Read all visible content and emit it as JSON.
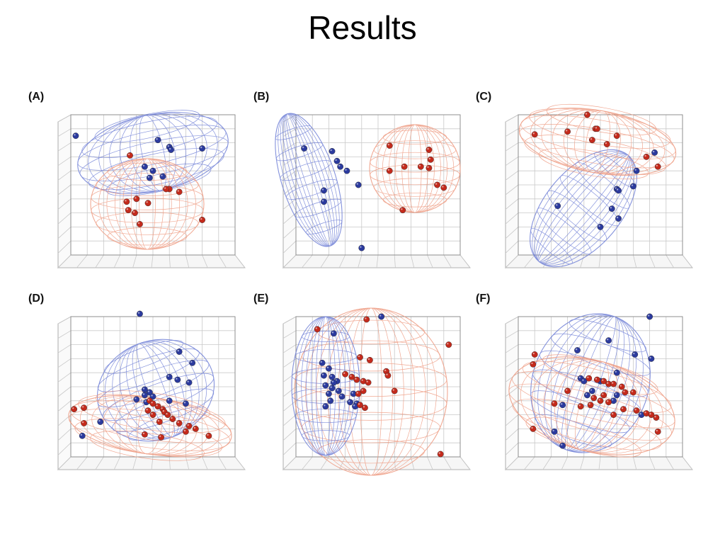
{
  "slide": {
    "title": "Results"
  },
  "colors": {
    "group1": "#2b3a9e",
    "group2": "#c42a1c",
    "mesh1": "#6f7fd6",
    "mesh2": "#ee9a80",
    "grid": "#c9c9c9"
  },
  "chart_data": [
    {
      "type": "scatter",
      "panel": "(A)",
      "xlim": [
        0,
        100
      ],
      "ylim": [
        0,
        100
      ],
      "series": [
        {
          "color": "blue",
          "x": [
            3,
            53,
            60,
            61,
            80,
            45,
            50,
            56,
            48
          ],
          "y": [
            85,
            82,
            77,
            75,
            76,
            63,
            60,
            56,
            55
          ]
        },
        {
          "color": "red",
          "x": [
            36,
            60,
            34,
            40,
            47,
            66,
            80,
            35,
            39,
            42,
            58
          ],
          "y": [
            71,
            47,
            38,
            40,
            37,
            45,
            25,
            32,
            30,
            22,
            47
          ]
        }
      ]
    },
    {
      "type": "scatter",
      "panel": "(B)",
      "xlim": [
        0,
        100
      ],
      "ylim": [
        0,
        100
      ],
      "series": [
        {
          "color": "blue",
          "x": [
            5,
            22,
            25,
            27,
            31,
            38,
            17,
            17,
            40
          ],
          "y": [
            76,
            74,
            67,
            63,
            60,
            50,
            46,
            38,
            5
          ]
        },
        {
          "color": "red",
          "x": [
            57,
            81,
            82,
            66,
            76,
            81,
            86,
            90,
            57,
            65
          ],
          "y": [
            78,
            75,
            68,
            63,
            63,
            62,
            50,
            48,
            60,
            32
          ]
        }
      ]
    },
    {
      "type": "scatter",
      "panel": "(C)",
      "xlim": [
        0,
        100
      ],
      "ylim": [
        0,
        100
      ],
      "series": [
        {
          "color": "blue",
          "x": [
            83,
            72,
            60,
            61,
            70,
            24,
            57,
            61,
            50
          ],
          "y": [
            73,
            60,
            47,
            46,
            49,
            35,
            33,
            26,
            20
          ]
        },
        {
          "color": "red",
          "x": [
            42,
            47,
            48,
            45,
            60,
            30,
            10,
            54,
            78,
            85
          ],
          "y": [
            100,
            90,
            90,
            82,
            85,
            88,
            86,
            79,
            70,
            63
          ]
        }
      ]
    },
    {
      "type": "scatter",
      "panel": "(D)",
      "xlim": [
        0,
        100
      ],
      "ylim": [
        0,
        100
      ],
      "series": [
        {
          "color": "blue",
          "x": [
            42,
            66,
            74,
            60,
            65,
            72,
            45,
            48,
            45,
            50,
            60,
            70,
            18,
            7,
            40,
            46
          ],
          "y": [
            102,
            75,
            67,
            57,
            55,
            53,
            48,
            46,
            44,
            43,
            40,
            38,
            25,
            15,
            41,
            39
          ]
        },
        {
          "color": "red",
          "x": [
            2,
            8,
            48,
            50,
            53,
            56,
            47,
            50,
            57,
            59,
            62,
            66,
            72,
            76,
            84,
            45,
            55,
            70,
            54,
            8
          ],
          "y": [
            34,
            35,
            40,
            38,
            36,
            34,
            33,
            30,
            32,
            30,
            27,
            24,
            22,
            20,
            15,
            16,
            14,
            18,
            25,
            24
          ]
        }
      ]
    },
    {
      "type": "scatter",
      "panel": "(E)",
      "xlim": [
        0,
        100
      ],
      "ylim": [
        0,
        100
      ],
      "series": [
        {
          "color": "blue",
          "x": [
            52,
            23,
            16,
            20,
            17,
            22,
            25,
            23,
            18,
            22,
            26,
            20,
            28,
            35,
            33,
            37,
            36,
            21,
            18
          ],
          "y": [
            100,
            88,
            67,
            63,
            58,
            57,
            54,
            53,
            51,
            49,
            47,
            45,
            43,
            45,
            39,
            38,
            36,
            40,
            36
          ]
        },
        {
          "color": "red",
          "x": [
            43,
            13,
            39,
            30,
            34,
            37,
            41,
            44,
            41,
            38,
            55,
            56,
            60,
            45,
            39,
            42,
            93,
            88
          ],
          "y": [
            98,
            91,
            71,
            59,
            57,
            55,
            54,
            53,
            47,
            45,
            61,
            58,
            47,
            69,
            37,
            35,
            80,
            2
          ]
        }
      ]
    },
    {
      "type": "scatter",
      "panel": "(F)",
      "xlim": [
        0,
        100
      ],
      "ylim": [
        0,
        100
      ],
      "series": [
        {
          "color": "blue",
          "x": [
            80,
            55,
            36,
            71,
            81,
            60,
            38,
            40,
            50,
            45,
            42,
            60,
            58,
            27,
            22,
            27,
            75
          ],
          "y": [
            100,
            83,
            76,
            73,
            70,
            60,
            56,
            54,
            54,
            47,
            44,
            44,
            40,
            37,
            18,
            8,
            30
          ]
        },
        {
          "color": "red",
          "x": [
            10,
            9,
            43,
            48,
            52,
            55,
            58,
            63,
            65,
            70,
            46,
            50,
            55,
            44,
            38,
            72,
            78,
            81,
            84,
            85,
            9,
            22,
            30,
            52,
            58,
            64
          ],
          "y": [
            73,
            66,
            56,
            55,
            54,
            52,
            52,
            50,
            46,
            46,
            42,
            40,
            39,
            37,
            36,
            33,
            31,
            30,
            28,
            18,
            20,
            38,
            47,
            44,
            30,
            34
          ]
        }
      ]
    }
  ]
}
